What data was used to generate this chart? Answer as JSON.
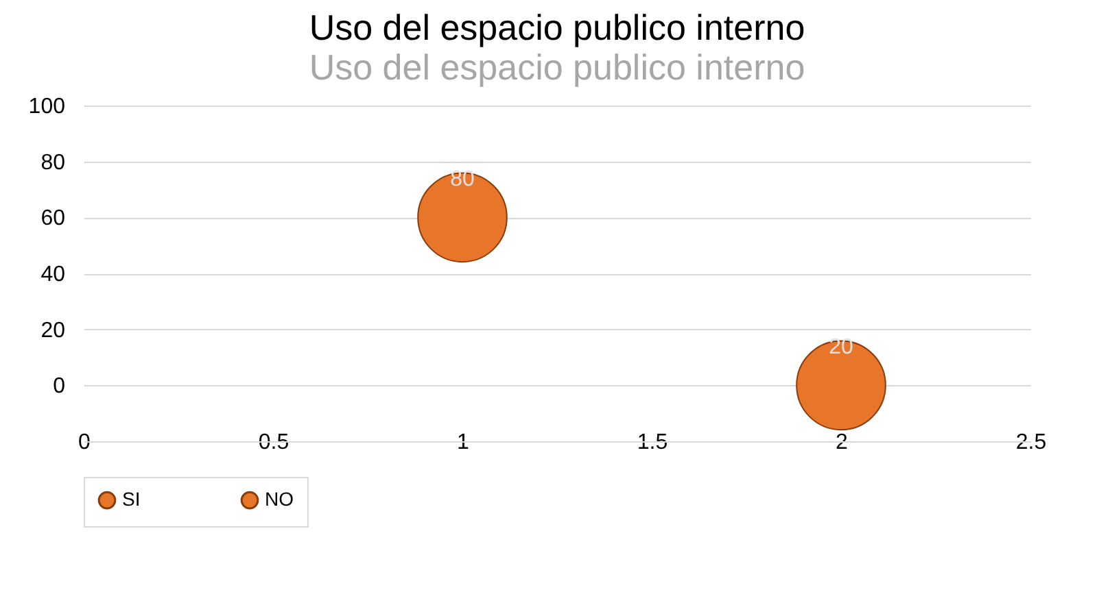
{
  "chart_data": {
    "type": "bubble",
    "title": "Uso del espacio publico interno",
    "subtitle": "Uso del espacio publico interno",
    "series": [
      {
        "name": "SI",
        "color": "#e8762a",
        "x": [
          1
        ],
        "values": [
          60
        ],
        "sizes": [
          1
        ]
      },
      {
        "name": "NO",
        "color": "#e8762a",
        "x": [
          2
        ],
        "values": [
          0
        ],
        "sizes": [
          1
        ]
      }
    ],
    "annotations": [
      {
        "text": "80",
        "x": 1,
        "y": 60
      },
      {
        "text": "20",
        "x": 2,
        "y": 0
      }
    ],
    "xlim": [
      0,
      2.5
    ],
    "xticks": [
      0,
      0.5,
      1,
      1.5,
      2,
      2.5
    ],
    "ylim": [
      -20,
      100
    ],
    "yticks": [
      0,
      20,
      40,
      60,
      80,
      100
    ],
    "grid": "y",
    "legend": "bottom"
  }
}
